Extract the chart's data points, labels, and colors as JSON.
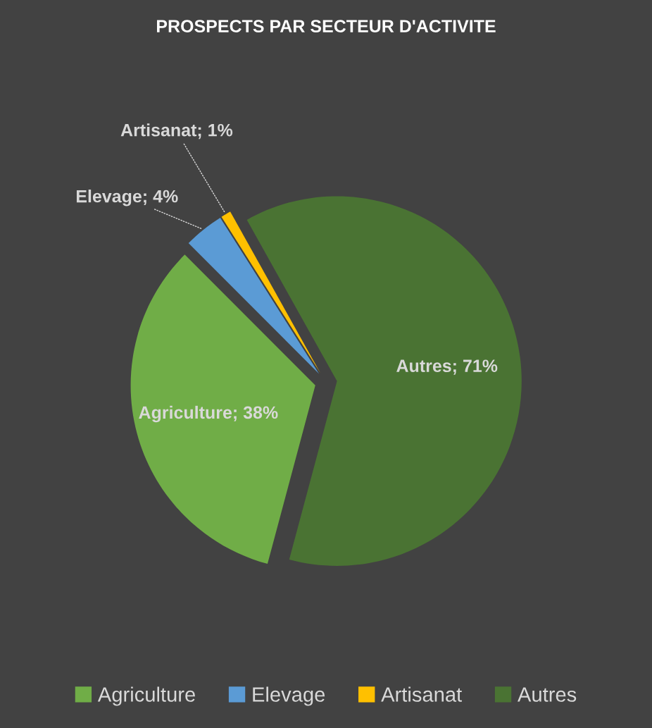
{
  "chart_data": {
    "type": "pie",
    "title": "PROSPECTS PAR SECTEUR D'ACTIVITE",
    "categories": [
      "Agriculture",
      "Elevage",
      "Artisanat",
      "Autres"
    ],
    "values": [
      38,
      4,
      1,
      71
    ],
    "colors": [
      "#70ad47",
      "#5b9bd5",
      "#ffc000",
      "#4a7333"
    ],
    "value_labels": [
      "Agriculture; 38%",
      "Elevage; 4%",
      "Artisanat; 1%",
      "Autres; 71%"
    ],
    "legend": "bottom"
  }
}
